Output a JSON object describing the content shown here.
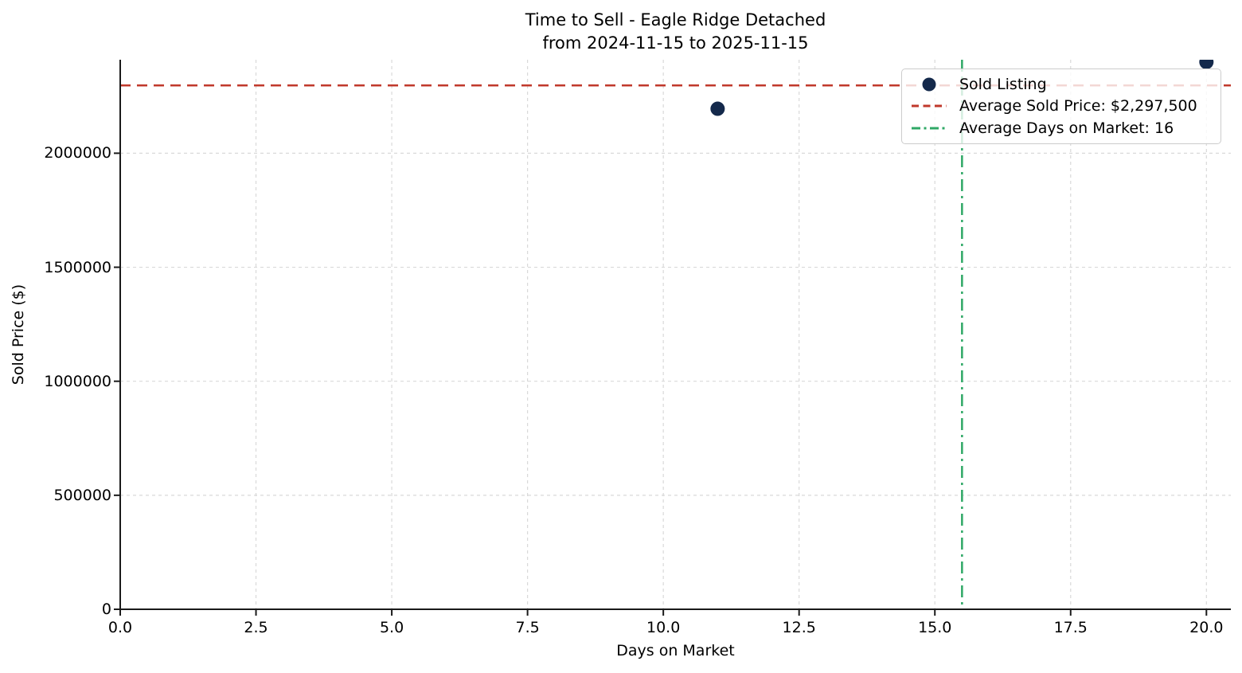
{
  "figure": {
    "title_lines": [
      "Time to Sell - Eagle Ridge Detached",
      "from 2024-11-15 to 2025-11-15"
    ]
  },
  "chart_data": {
    "type": "scatter",
    "title": "Time to Sell - Eagle Ridge Detached\nfrom 2024-11-15 to 2025-11-15",
    "xlabel": "Days on Market",
    "ylabel": "Sold Price ($)",
    "xlim": [
      0,
      20.45
    ],
    "ylim": [
      0,
      2410000
    ],
    "grid": true,
    "x_ticks": [
      0,
      2.5,
      5,
      7.5,
      10,
      12.5,
      15,
      17.5,
      20
    ],
    "x_tick_labels": [
      "0.0",
      "2.5",
      "5.0",
      "7.5",
      "10.0",
      "12.5",
      "15.0",
      "17.5",
      "20.0"
    ],
    "y_ticks": [
      0,
      500000,
      1000000,
      1500000,
      2000000
    ],
    "y_tick_labels": [
      "0",
      "500000",
      "1000000",
      "1500000",
      "2000000"
    ],
    "series": [
      {
        "name": "Sold Listing",
        "marker": "circle",
        "color": "#14294B",
        "points": [
          {
            "x": 11,
            "y": 2195000
          },
          {
            "x": 20,
            "y": 2400000
          }
        ]
      }
    ],
    "reference_lines": [
      {
        "label": "Average Sold Price: $2,297,500",
        "orientation": "horizontal",
        "value": 2297500,
        "color": "#C0392B",
        "style": "dashed"
      },
      {
        "label": "Average Days on Market: 16",
        "orientation": "vertical",
        "value": 15.5,
        "display_value": 16,
        "color": "#2FA866",
        "style": "dashdot"
      }
    ],
    "legend": {
      "position": "upper right",
      "entries": [
        {
          "label": "Sold Listing",
          "marker": "dot",
          "color": "#14294B"
        },
        {
          "label": "Average Sold Price: $2,297,500",
          "marker": "dashed-line",
          "color": "#C0392B"
        },
        {
          "label": "Average Days on Market: 16",
          "marker": "dashdot-line",
          "color": "#2FA866"
        }
      ]
    },
    "colors": {
      "grid": "#D9D9D9",
      "spine": "#1A1A1A",
      "tick": "#1A1A1A"
    }
  }
}
